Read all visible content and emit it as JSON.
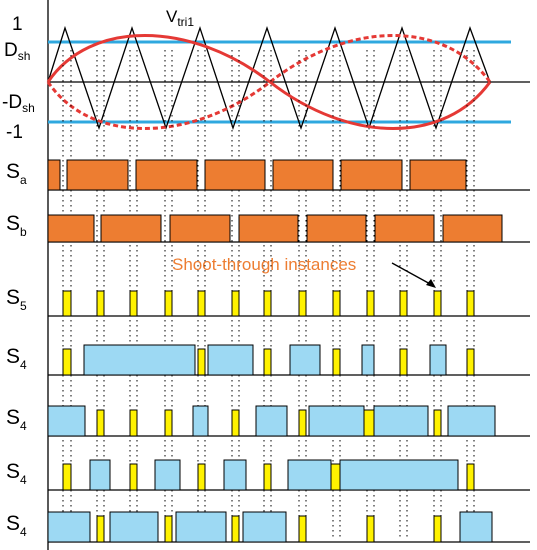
{
  "labels": {
    "v_tri": "V",
    "v_tri_sub": "tri1",
    "one": "1",
    "d_sh": "D",
    "d_sh_sub": "sh",
    "neg_d_sh": "-D",
    "neg_d_sh_sub": "sh",
    "neg_one": "-1",
    "annotation": "Shoot-through instances"
  },
  "colors": {
    "orange": "#ED7D31",
    "yellow": "#FFF200",
    "light_blue": "#9DD9F3",
    "blue_line": "#2FA8DF",
    "red": "#E53935"
  },
  "rows": [
    {
      "label": "S",
      "sub": "a",
      "color": "orange",
      "pulses": [
        [
          48,
          60
        ],
        [
          67,
          128
        ],
        [
          136,
          197
        ],
        [
          205,
          265
        ],
        [
          273,
          333
        ],
        [
          341,
          402
        ],
        [
          410,
          466
        ]
      ]
    },
    {
      "label": "S",
      "sub": "b",
      "color": "orange",
      "pulses": [
        [
          48,
          94
        ],
        [
          101,
          161
        ],
        [
          170,
          230
        ],
        [
          239,
          298
        ],
        [
          307,
          366
        ],
        [
          375,
          434
        ],
        [
          443,
          502
        ]
      ]
    },
    {
      "label": "S",
      "sub": "5",
      "color": "yellow",
      "pulses": [
        [
          63,
          71
        ],
        [
          97,
          104
        ],
        [
          130,
          137
        ],
        [
          165,
          172
        ],
        [
          198,
          205
        ],
        [
          232,
          239
        ],
        [
          264,
          271
        ],
        [
          299,
          306
        ],
        [
          333,
          340
        ],
        [
          367,
          374
        ],
        [
          400,
          407
        ],
        [
          434,
          441
        ],
        [
          467,
          474
        ]
      ]
    },
    {
      "label": "S",
      "sub": "4",
      "color": "mixed",
      "pulses": [
        [
          63,
          71,
          "yellow"
        ],
        [
          84,
          195,
          "blue"
        ],
        [
          198,
          205,
          "yellow"
        ],
        [
          208,
          253,
          "blue"
        ],
        [
          264,
          271,
          "yellow"
        ],
        [
          290,
          320,
          "blue"
        ],
        [
          333,
          340,
          "yellow"
        ],
        [
          362,
          374,
          "blue"
        ],
        [
          400,
          407,
          "yellow"
        ],
        [
          430,
          446,
          "blue"
        ],
        [
          467,
          474,
          "yellow"
        ]
      ]
    },
    {
      "label": "S",
      "sub": "4",
      "color": "mixed",
      "pulses": [
        [
          48,
          85,
          "blue"
        ],
        [
          97,
          104,
          "yellow"
        ],
        [
          130,
          137,
          "yellow"
        ],
        [
          165,
          172,
          "yellow"
        ],
        [
          193,
          208,
          "blue"
        ],
        [
          232,
          239,
          "yellow"
        ],
        [
          256,
          287,
          "blue"
        ],
        [
          299,
          306,
          "yellow"
        ],
        [
          309,
          364,
          "blue"
        ],
        [
          364,
          374,
          "yellow"
        ],
        [
          374,
          428,
          "blue"
        ],
        [
          434,
          441,
          "yellow"
        ],
        [
          448,
          495,
          "blue"
        ]
      ]
    },
    {
      "label": "S",
      "sub": "4",
      "color": "mixed",
      "pulses": [
        [
          63,
          71,
          "yellow"
        ],
        [
          90,
          110,
          "blue"
        ],
        [
          130,
          137,
          "yellow"
        ],
        [
          155,
          180,
          "blue"
        ],
        [
          198,
          205,
          "yellow"
        ],
        [
          224,
          246,
          "blue"
        ],
        [
          264,
          271,
          "yellow"
        ],
        [
          288,
          331,
          "blue"
        ],
        [
          331,
          340,
          "yellow"
        ],
        [
          340,
          458,
          "blue"
        ],
        [
          467,
          474,
          "yellow"
        ]
      ]
    },
    {
      "label": "S",
      "sub": "4",
      "color": "mixed",
      "pulses": [
        [
          48,
          90,
          "blue"
        ],
        [
          97,
          104,
          "yellow"
        ],
        [
          110,
          158,
          "blue"
        ],
        [
          165,
          172,
          "yellow"
        ],
        [
          176,
          226,
          "blue"
        ],
        [
          232,
          239,
          "yellow"
        ],
        [
          243,
          286,
          "blue"
        ],
        [
          299,
          306,
          "yellow"
        ],
        [
          367,
          374,
          "yellow"
        ],
        [
          434,
          441,
          "yellow"
        ],
        [
          460,
          492,
          "blue"
        ]
      ]
    }
  ]
}
